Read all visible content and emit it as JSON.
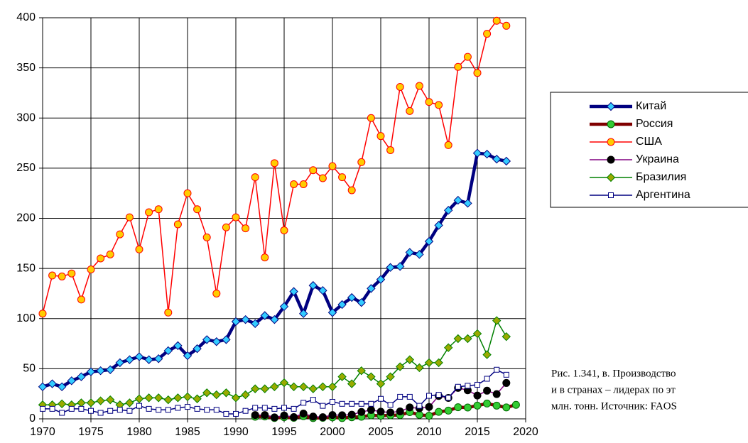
{
  "chart_data": {
    "type": "line",
    "x": [
      1970,
      1971,
      1972,
      1973,
      1974,
      1975,
      1976,
      1977,
      1978,
      1979,
      1980,
      1981,
      1982,
      1983,
      1984,
      1985,
      1986,
      1987,
      1988,
      1989,
      1990,
      1991,
      1992,
      1993,
      1994,
      1995,
      1996,
      1997,
      1998,
      1999,
      2000,
      2001,
      2002,
      2003,
      2004,
      2005,
      2006,
      2007,
      2008,
      2009,
      2010,
      2011,
      2012,
      2013,
      2014,
      2015,
      2016,
      2017,
      2018,
      2019
    ],
    "series": [
      {
        "name": "Китай",
        "color": "#000080",
        "marker": "diamond",
        "marker_color": "#33ccff",
        "line_width": 4.5,
        "values": [
          32,
          35,
          32,
          38,
          42,
          47,
          48,
          49,
          56,
          59,
          62,
          59,
          60,
          68,
          73,
          63,
          70,
          79,
          77,
          79,
          97,
          99,
          95,
          103,
          99,
          112,
          127,
          105,
          133,
          128,
          106,
          114,
          121,
          116,
          130,
          139,
          151,
          152,
          166,
          164,
          177,
          193,
          208,
          218,
          215,
          265,
          264,
          259,
          257,
          null
        ]
      },
      {
        "name": "Россия",
        "color": "#800000",
        "marker": "circle",
        "marker_color": "#33cc33",
        "line_width": 4.5,
        "values": [
          null,
          null,
          null,
          null,
          null,
          null,
          null,
          null,
          null,
          null,
          null,
          null,
          null,
          null,
          null,
          null,
          null,
          null,
          null,
          null,
          null,
          null,
          2.1,
          2.4,
          0.9,
          1.7,
          1.1,
          2.7,
          0.8,
          1.1,
          1.5,
          0.8,
          1.6,
          2.1,
          3.5,
          3.1,
          3.5,
          3.8,
          6.7,
          4.0,
          3.1,
          7.0,
          8.2,
          11.6,
          11.3,
          13.2,
          15.3,
          13.2,
          11.4,
          14
        ]
      },
      {
        "name": "США",
        "color": "#ff0000",
        "marker": "circle",
        "marker_color": "#ffcc00",
        "line_width": 1.5,
        "values": [
          105,
          143,
          142,
          145,
          119,
          149,
          160,
          164,
          184,
          201,
          169,
          206,
          209,
          106,
          194,
          225,
          209,
          181,
          125,
          191,
          201,
          190,
          241,
          161,
          255,
          188,
          234,
          234,
          248,
          240,
          252,
          241,
          228,
          256,
          300,
          282,
          268,
          331,
          307,
          332,
          316,
          313,
          273,
          351,
          361,
          345,
          384,
          397,
          392,
          null
        ]
      },
      {
        "name": "Украина",
        "color": "#800080",
        "marker": "circle",
        "marker_color": "#000000",
        "line_width": 1.5,
        "values": [
          null,
          null,
          null,
          null,
          null,
          null,
          null,
          null,
          null,
          null,
          null,
          null,
          null,
          null,
          null,
          null,
          null,
          null,
          null,
          null,
          null,
          null,
          3.8,
          3.8,
          1.5,
          3.4,
          1.8,
          5.3,
          2.3,
          1.7,
          3.8,
          3.6,
          4.2,
          6.9,
          8.9,
          7.2,
          6.4,
          7.4,
          11.4,
          10.5,
          11.9,
          22.8,
          20.9,
          30.9,
          28.5,
          23.3,
          28.1,
          24.7,
          35.8,
          null
        ]
      },
      {
        "name": "Бразилия",
        "color": "#008000",
        "marker": "diamond",
        "marker_color": "#99aa00",
        "line_width": 1.5,
        "values": [
          14,
          14,
          15,
          14,
          16,
          16,
          18,
          19,
          14,
          16,
          20,
          21,
          21,
          19,
          21,
          22,
          20,
          26,
          24,
          26,
          21,
          24,
          30,
          30,
          32,
          36,
          32,
          32,
          30,
          32,
          32,
          42,
          35,
          48,
          42,
          35,
          42,
          52,
          59,
          51,
          56,
          56,
          71,
          80,
          80,
          85,
          64,
          98,
          82,
          null
        ]
      },
      {
        "name": "Аргентина",
        "color": "#000080",
        "marker": "square",
        "marker_color": "#ffffff",
        "line_width": 1.5,
        "values": [
          10,
          10,
          6,
          10,
          10,
          8,
          6,
          8,
          9,
          8,
          13,
          10,
          9,
          9,
          11,
          12,
          10,
          9,
          9,
          5,
          5,
          8,
          11,
          11,
          10,
          11,
          10,
          16,
          19,
          13,
          17,
          15,
          15,
          15,
          15,
          20,
          14,
          22,
          22,
          13,
          23,
          24,
          21,
          32,
          33,
          34,
          40,
          49,
          44,
          null
        ]
      }
    ],
    "xlim": [
      1970,
      2020
    ],
    "xticks": [
      1970,
      1975,
      1980,
      1985,
      1990,
      1995,
      2000,
      2005,
      2010,
      2015,
      2020
    ],
    "ylim": [
      0,
      400
    ],
    "yticks": [
      0,
      50,
      100,
      150,
      200,
      250,
      300,
      350,
      400
    ],
    "grid": true,
    "legend": "right",
    "annotation": [
      "Рис. 1.341, в. Производство",
      "и в странах – лидерах по эт",
      "млн. тонн. Источник: FAOS"
    ]
  }
}
